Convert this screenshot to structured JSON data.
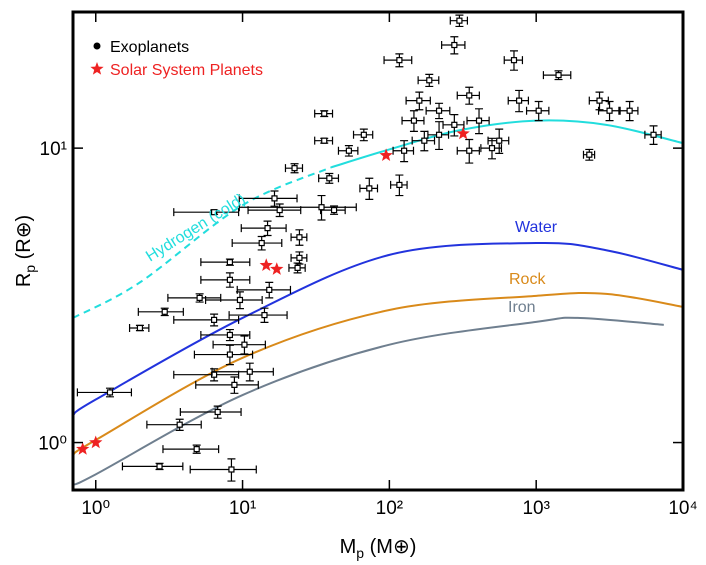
{
  "chart_data": {
    "type": "scatter",
    "x_label": [
      "M",
      "p",
      " (M⊕)"
    ],
    "y_label": [
      "R",
      "p",
      " (R⊕)"
    ],
    "log_x": true,
    "log_y": true,
    "xlim": [
      0.7,
      10000
    ],
    "ylim": [
      0.69,
      29
    ],
    "xticks": [
      {
        "value": 1,
        "label": "10⁰"
      },
      {
        "value": 10,
        "label": "10¹"
      },
      {
        "value": 100,
        "label": "10²"
      },
      {
        "value": 1000,
        "label": "10³"
      },
      {
        "value": 10000,
        "label": "10⁴"
      }
    ],
    "yticks": [
      {
        "value": 1,
        "label": "10⁰"
      },
      {
        "value": 10,
        "label": "10¹"
      }
    ],
    "legend": "top-left",
    "series": [
      {
        "name": "Exoplanets",
        "color": "#000000",
        "x": [
          2.72,
          8.4,
          4.87,
          3.73,
          6.77,
          1.25,
          8.8,
          6.4,
          11.2,
          8.2,
          10.3,
          2.0,
          8.2,
          6.4,
          14.1,
          2.95,
          9.6,
          5.1,
          15.2,
          8.2,
          23.7,
          24.4,
          8.2,
          13.5,
          24.4,
          14.8,
          6.4,
          17.9,
          42,
          16.5,
          34.5,
          22.6,
          39,
          73,
          36,
          53,
          67,
          36,
          117,
          187,
          277,
          300,
          160,
          218,
          350,
          408,
          560,
          765,
          1040,
          1420,
          2700,
          3160,
          4330,
          6300,
          2300,
          126,
          147,
          218,
          706,
          173,
          117,
          500,
          277,
          350
        ],
        "xerr": [
          1.2,
          4,
          2,
          1.5,
          3,
          0.5,
          4,
          3,
          5,
          3.5,
          4,
          0.3,
          3,
          3,
          6,
          1,
          4,
          2,
          6,
          3,
          3,
          3,
          3,
          5,
          3,
          5,
          3,
          7,
          8,
          7,
          25,
          3,
          6,
          10,
          5,
          8,
          10,
          5,
          25,
          30,
          50,
          40,
          30,
          40,
          60,
          70,
          90,
          120,
          180,
          300,
          400,
          500,
          600,
          800,
          200,
          20,
          25,
          35,
          100,
          30,
          15,
          80,
          45,
          60
        ],
        "values": [
          0.83,
          0.81,
          0.95,
          1.15,
          1.27,
          1.48,
          1.57,
          1.7,
          1.74,
          1.99,
          2.15,
          2.45,
          2.32,
          2.61,
          2.71,
          2.78,
          3.05,
          3.1,
          3.3,
          3.57,
          3.92,
          4.24,
          4.1,
          4.76,
          4.98,
          5.35,
          6.06,
          6.16,
          6.16,
          6.75,
          6.3,
          8.55,
          7.9,
          7.3,
          10.6,
          9.8,
          11.1,
          13.1,
          19.9,
          17.0,
          22.4,
          27.1,
          14.5,
          13.4,
          15.1,
          12.4,
          10.6,
          14.5,
          13.4,
          17.7,
          14.5,
          13.4,
          13.4,
          11.1,
          9.5,
          9.8,
          12.4,
          11.1,
          19.9,
          10.6,
          7.5,
          10.0,
          12.0,
          9.8
        ],
        "yerr": [
          0.02,
          0.07,
          0.03,
          0.05,
          0.06,
          0.05,
          0.1,
          0.08,
          0.12,
          0.15,
          0.15,
          0.05,
          0.1,
          0.12,
          0.15,
          0.08,
          0.2,
          0.1,
          0.2,
          0.2,
          0.15,
          0.2,
          0.1,
          0.25,
          0.3,
          0.3,
          0.1,
          0.3,
          0.2,
          0.4,
          0.6,
          0.3,
          0.3,
          0.6,
          0.2,
          0.4,
          0.5,
          0.3,
          1.0,
          0.8,
          1.5,
          1.2,
          1.0,
          0.8,
          1.0,
          1.2,
          1.0,
          1.2,
          1.0,
          0.6,
          1.0,
          1.0,
          1.0,
          0.8,
          0.4,
          0.8,
          1.0,
          1.2,
          1.5,
          0.8,
          0.6,
          0.8,
          1.0,
          0.9
        ]
      },
      {
        "name": "Solar System Planets",
        "color": "#ee2222",
        "x": [
          0.815,
          1,
          14.5,
          17.1,
          95,
          318
        ],
        "values": [
          0.95,
          1,
          4.0,
          3.88,
          9.45,
          11.2
        ]
      }
    ],
    "lines": [
      {
        "name": "Water",
        "color": "#2233dd",
        "x": [
          0.7,
          1,
          10,
          100,
          1000,
          3000,
          10000
        ],
        "values": [
          1.24,
          1.4,
          2.65,
          4.34,
          4.76,
          4.5,
          3.86
        ]
      },
      {
        "name": "Rock",
        "color": "#d98a1a",
        "x": [
          0.7,
          1,
          10,
          100,
          1000,
          3000,
          10000
        ],
        "values": [
          0.91,
          1.02,
          1.94,
          2.82,
          3.15,
          3.2,
          2.89
        ]
      },
      {
        "name": "Iron",
        "color": "#6f7f8f",
        "x": [
          0.7,
          1,
          10,
          100,
          1000,
          2000,
          7400
        ],
        "values": [
          0.72,
          0.78,
          1.45,
          2.15,
          2.57,
          2.65,
          2.51
        ]
      },
      {
        "name": "Hydrogen (cold)",
        "color": "#22dddd",
        "dashed_below_x": 40,
        "x": [
          0.7,
          2,
          10,
          40,
          100,
          300,
          1000,
          3000,
          10000
        ],
        "values": [
          2.65,
          3.5,
          6.4,
          8.6,
          9.9,
          11.5,
          12.4,
          12.0,
          10.4
        ]
      }
    ]
  }
}
